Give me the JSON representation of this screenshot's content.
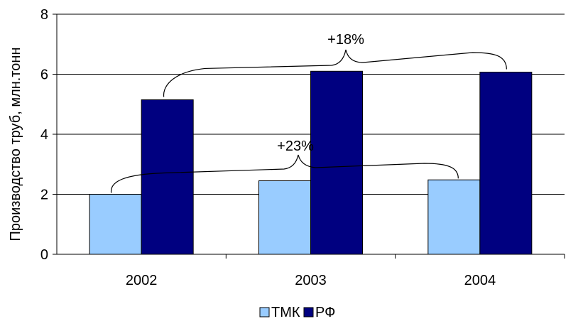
{
  "chart_data": {
    "type": "bar",
    "categories": [
      "2002",
      "2003",
      "2004"
    ],
    "series": [
      {
        "name": "ТМК",
        "values": [
          2.0,
          2.45,
          2.48
        ],
        "color": "#99ccff"
      },
      {
        "name": "РФ",
        "values": [
          5.15,
          6.1,
          6.07
        ],
        "color": "#000080"
      }
    ],
    "ylabel": "Производство труб, млн.тонн",
    "ylim": [
      0,
      8
    ],
    "yticks": [
      0,
      2,
      4,
      6,
      8
    ],
    "grid": true,
    "legend": "bottom",
    "annotations": [
      {
        "text": "+18%",
        "series": "РФ"
      },
      {
        "text": "+23%",
        "series": "ТМК"
      }
    ]
  }
}
